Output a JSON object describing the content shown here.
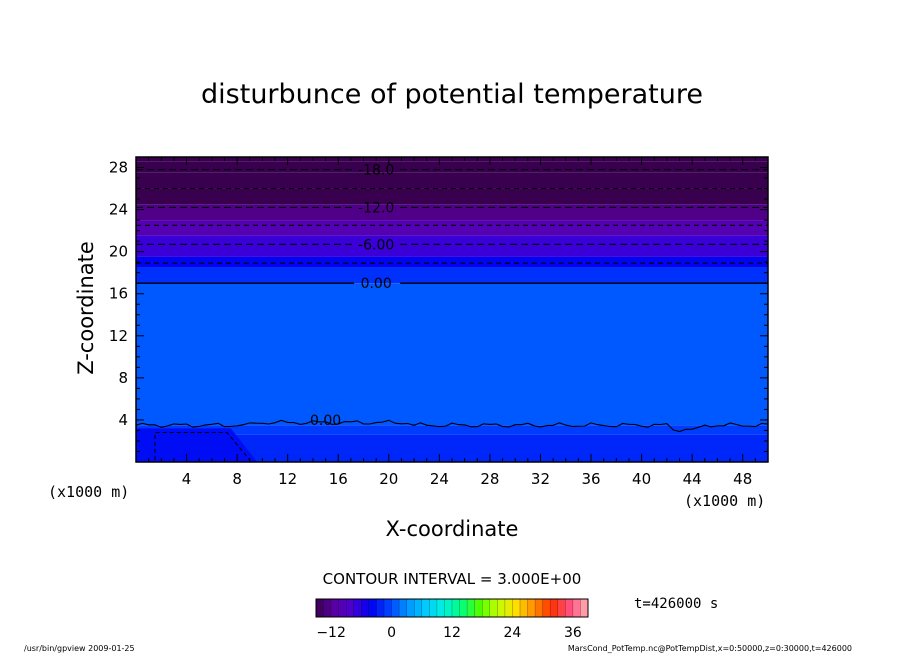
{
  "chart_data": {
    "type": "heatmap",
    "title": "disturbunce of potential temperature",
    "xlabel": "X-coordinate",
    "ylabel": "Z-coordinate",
    "x_unit": "(x1000 m)",
    "y_unit": "(x1000 m)",
    "xlim": [
      0,
      50
    ],
    "ylim": [
      0,
      29
    ],
    "x_ticks": [
      4,
      8,
      12,
      16,
      20,
      24,
      28,
      32,
      36,
      40,
      44,
      48
    ],
    "y_ticks": [
      4,
      8,
      12,
      16,
      20,
      24,
      28
    ],
    "contour_interval_label": "CONTOUR INTERVAL = 3.000E+00",
    "time_label": "t=426000 s",
    "contour_levels": [
      -18,
      -15,
      -12,
      -9,
      -6,
      -3,
      0
    ],
    "contour_labels": [
      {
        "text": "-18.0",
        "x": 19,
        "z": 27.8
      },
      {
        "text": "-12.0",
        "x": 19,
        "z": 24.2
      },
      {
        "text": "-6.00",
        "x": 19,
        "z": 20.7
      },
      {
        "text": "0.00",
        "x": 19,
        "z": 17.0
      },
      {
        "text": "0.00",
        "x": 15,
        "z": 4.0
      }
    ],
    "field_bands": [
      {
        "z_from": 29.0,
        "z_to": 28.6,
        "value": -21
      },
      {
        "z_from": 28.6,
        "z_to": 27.5,
        "value": -19.5
      },
      {
        "z_from": 27.5,
        "z_to": 26.0,
        "value": -17.5
      },
      {
        "z_from": 26.0,
        "z_to": 24.5,
        "value": -15
      },
      {
        "z_from": 24.5,
        "z_to": 23.0,
        "value": -12.5
      },
      {
        "z_from": 23.0,
        "z_to": 21.5,
        "value": -10
      },
      {
        "z_from": 21.5,
        "z_to": 19.5,
        "value": -7
      },
      {
        "z_from": 19.5,
        "z_to": 18.5,
        "value": -4
      },
      {
        "z_from": 18.5,
        "z_to": 17.0,
        "value": -1.5
      },
      {
        "z_from": 17.0,
        "z_to": 3.5,
        "value": 0.5
      },
      {
        "z_from": 3.5,
        "z_to": 2.6,
        "value": -0.8
      },
      {
        "z_from": 2.6,
        "z_to": 0.0,
        "value": -2
      }
    ],
    "colorbar": {
      "min": -15,
      "max": 39,
      "tick_values": [
        -12,
        0,
        12,
        24,
        36
      ],
      "tick_labels": [
        "−12",
        "0",
        "12",
        "24",
        "36"
      ]
    }
  },
  "colors": {
    "scale": [
      "#3a0050",
      "#5a00a0",
      "#4a00d0",
      "#0000f0",
      "#0040ff",
      "#0090ff",
      "#00c8ff",
      "#00f0e0",
      "#00ff80",
      "#50ff00",
      "#c0ff00",
      "#ffe000",
      "#ff9000",
      "#ff3000",
      "#ff5080",
      "#ffb0b0"
    ],
    "background": "#ffffff",
    "line": "#000000"
  },
  "footer": {
    "left": "/usr/bin/gpview   2009-01-25",
    "right": "MarsCond_PotTemp.nc@PotTempDist,x=0:50000,z=0:30000,t=426000"
  }
}
